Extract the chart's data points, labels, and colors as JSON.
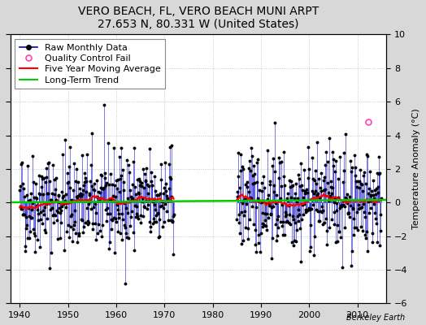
{
  "title": "VERO BEACH, FL, VERO BEACH MUNI ARPT",
  "subtitle": "27.653 N, 80.331 W (United States)",
  "ylabel": "Temperature Anomaly (°C)",
  "credit": "Berkeley Earth",
  "xlim": [
    1938,
    2016
  ],
  "ylim": [
    -6,
    10
  ],
  "yticks": [
    -6,
    -4,
    -2,
    0,
    2,
    4,
    6,
    8,
    10
  ],
  "xticks": [
    1940,
    1950,
    1960,
    1970,
    1980,
    1990,
    2000,
    2010
  ],
  "seg1_start": 1940,
  "seg1_end": 1971,
  "seg2_start": 1985,
  "seg2_end": 2014,
  "raw_color": "#0000cc",
  "moving_avg_color": "#ff0000",
  "trend_color": "#00cc00",
  "qc_fail_color": "#ff44aa",
  "background_color": "#d8d8d8",
  "plot_bg_color": "#ffffff",
  "grid_color": "#bbbbbb",
  "qc_time": 2012.3,
  "qc_val": 4.8,
  "seed": 42,
  "data_std": 1.5,
  "data_mean": 0.1,
  "trend_slope": 0.003,
  "title_fontsize": 10,
  "subtitle_fontsize": 9,
  "legend_fontsize": 8,
  "tick_fontsize": 8,
  "ylabel_fontsize": 8
}
